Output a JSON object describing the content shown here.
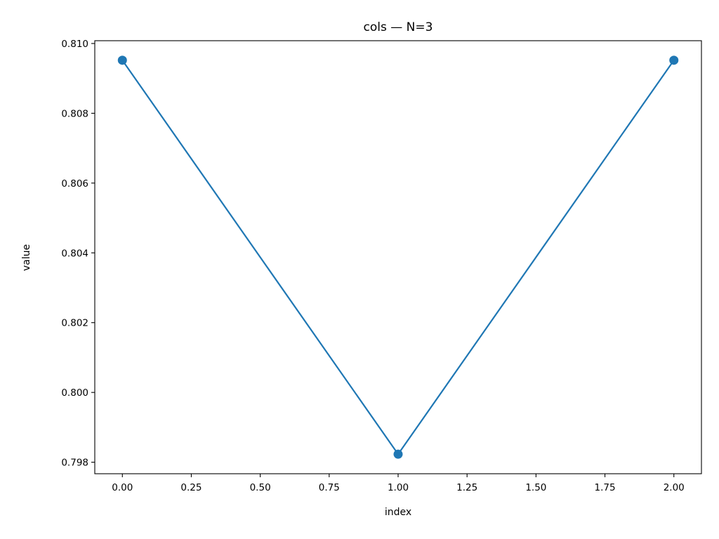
{
  "chart_data": {
    "type": "line",
    "title": "cols — N=3",
    "xlabel": "index",
    "ylabel": "value",
    "x": [
      0,
      1,
      2
    ],
    "series": [
      {
        "values": [
          0.80952,
          0.79823,
          0.80952
        ]
      }
    ],
    "xlim": [
      -0.1,
      2.1
    ],
    "ylim": [
      0.79767,
      0.81008
    ],
    "xticks": [
      0.0,
      0.25,
      0.5,
      0.75,
      1.0,
      1.25,
      1.5,
      1.75,
      2.0
    ],
    "xtick_labels": [
      "0.00",
      "0.25",
      "0.50",
      "0.75",
      "1.00",
      "1.25",
      "1.50",
      "1.75",
      "2.00"
    ],
    "yticks": [
      0.798,
      0.8,
      0.802,
      0.804,
      0.806,
      0.808,
      0.81
    ],
    "ytick_labels": [
      "0.798",
      "0.800",
      "0.802",
      "0.804",
      "0.806",
      "0.808",
      "0.810"
    ],
    "grid": false,
    "colors": {
      "line": "#1f77b4",
      "marker": "#1f77b4",
      "axis": "#000000"
    }
  }
}
